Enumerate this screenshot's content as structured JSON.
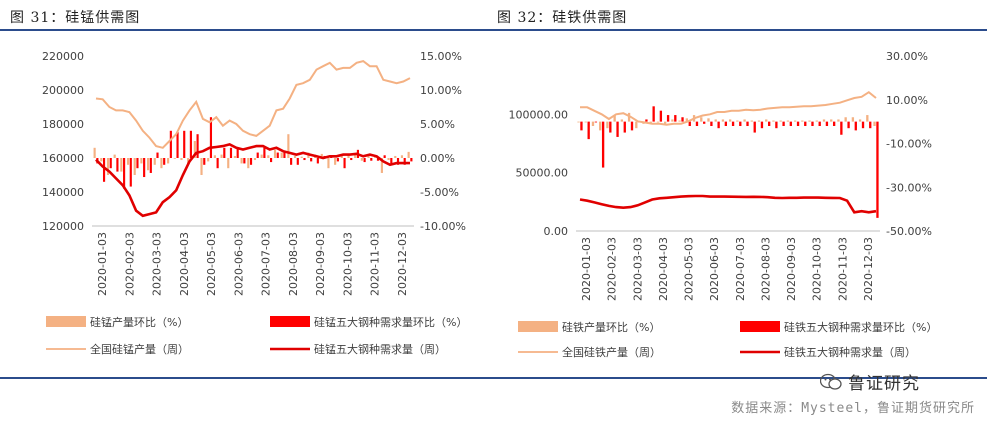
{
  "figures": [
    {
      "title": "图 31：硅锰供需图"
    },
    {
      "title": "图 32：硅铁供需图"
    }
  ],
  "source": "数据来源：Mysteel，鲁证期货研究所",
  "logo_text": "鲁证研究",
  "colors": {
    "rule": "#2b4c8c",
    "bar_prod": "#f4b183",
    "bar_demand": "#ff0000",
    "line_prod": "#f4b183",
    "line_demand": "#e00000"
  },
  "chart_data": [
    {
      "type": "bar+line",
      "x_ticks": [
        "2020-01-03",
        "2020-02-03",
        "2020-03-03",
        "2020-04-03",
        "2020-05-03",
        "2020-06-03",
        "2020-07-03",
        "2020-08-03",
        "2020-09-03",
        "2020-10-03",
        "2020-11-03",
        "2020-12-03"
      ],
      "y_left": {
        "ticks": [
          "120000",
          "140000",
          "160000",
          "180000",
          "200000",
          "220000"
        ],
        "min": 120000,
        "max": 220000
      },
      "y_right": {
        "ticks": [
          "-10.00%",
          "-5.00%",
          "0.00%",
          "5.00%",
          "10.00%",
          "15.00%"
        ],
        "min": -10,
        "max": 15
      },
      "legend": [
        "硅锰产量环比（%）",
        "硅锰五大钢种需求量环比（%）",
        "全国硅锰产量（周）",
        "硅锰五大钢种需求量（周）"
      ],
      "production_week": [
        195000,
        194500,
        190000,
        188000,
        188000,
        187000,
        182000,
        176000,
        172000,
        167000,
        166000,
        170000,
        174000,
        182000,
        188000,
        193000,
        183000,
        181000,
        184000,
        179000,
        182000,
        180000,
        176000,
        174000,
        173000,
        176000,
        179000,
        188000,
        189000,
        195000,
        203000,
        204000,
        206000,
        212000,
        214000,
        216000,
        212000,
        213000,
        213000,
        216000,
        217000,
        214000,
        214000,
        206000,
        205000,
        204000,
        205000,
        207000
      ],
      "demand_week": [
        159000,
        155000,
        152000,
        148000,
        144000,
        138000,
        129000,
        126000,
        127000,
        128000,
        134000,
        137000,
        141000,
        150000,
        158000,
        163000,
        164000,
        166000,
        166500,
        167000,
        168000,
        166000,
        165000,
        166000,
        167000,
        167000,
        165000,
        166000,
        164000,
        163000,
        162000,
        163000,
        162000,
        161000,
        160000,
        161000,
        161000,
        162000,
        162000,
        162500,
        161000,
        162000,
        161000,
        158000,
        156000,
        157000,
        157000,
        157000
      ],
      "production_pct": [
        1.5,
        -0.5,
        -2.5,
        0.5,
        -2.0,
        -1.0,
        -2.5,
        -0.8,
        -1.8,
        -1.0,
        -1.5,
        -0.8,
        0.0,
        -0.3,
        -1.0,
        2.5,
        -2.5,
        -0.5,
        0.4,
        0.5,
        -1.5,
        0.3,
        -0.8,
        -1.5,
        -0.3,
        0.5,
        0.4,
        1.2,
        0.8,
        3.5,
        0.3,
        0.2,
        0.8,
        0.5,
        0.6,
        -1.5,
        -1.0,
        0.5,
        0.6,
        0.5,
        -0.4,
        0.4,
        0.3,
        -2.2,
        -0.3,
        0.3,
        0.4,
        0.9
      ],
      "demand_pct": [
        -0.8,
        -3.5,
        -1.5,
        -2.0,
        -4.5,
        -4.2,
        -1.5,
        -2.8,
        -2.2,
        0.8,
        -1.0,
        4.0,
        3.8,
        4.0,
        4.0,
        3.5,
        -1.0,
        6.0,
        -1.5,
        1.5,
        1.5,
        1.5,
        -0.8,
        -1.0,
        0.8,
        1.5,
        -0.6,
        0.8,
        1.0,
        -1.0,
        -1.0,
        -0.3,
        -0.5,
        -0.8,
        0.3,
        0.3,
        -0.5,
        -1.5,
        -0.3,
        1.2,
        -0.6,
        -0.4,
        -0.4,
        0.4,
        -0.8,
        -1.0,
        -1.0,
        -0.5
      ]
    },
    {
      "type": "bar+line",
      "x_ticks": [
        "2020-01-03",
        "2020-02-03",
        "2020-03-03",
        "2020-04-03",
        "2020-05-03",
        "2020-06-03",
        "2020-07-03",
        "2020-08-03",
        "2020-09-03",
        "2020-10-03",
        "2020-11-03",
        "2020-12-03"
      ],
      "y_left": {
        "ticks": [
          "0.00",
          "50000.00",
          "100000.00"
        ],
        "min": 0,
        "max": 150000
      },
      "y_right": {
        "ticks": [
          "-50.00%",
          "-30.00%",
          "-10.00%",
          "10.00%",
          "30.00%"
        ],
        "min": -50,
        "max": 30
      },
      "legend": [
        "硅铁产量环比（%）",
        "硅铁五大钢种需求量环比（%）",
        "全国硅铁产量（周）",
        "硅铁五大钢种需求量（周）"
      ],
      "production_week": [
        106000,
        106000,
        103000,
        100000,
        96000,
        100000,
        101000,
        98000,
        94000,
        93000,
        92000,
        92000,
        91000,
        92000,
        92000,
        94000,
        97000,
        99000,
        100000,
        102000,
        102000,
        103000,
        103000,
        104000,
        103500,
        104000,
        105000,
        105500,
        106000,
        106000,
        106500,
        107000,
        107000,
        107500,
        108000,
        109000,
        110000,
        112000,
        114000,
        115000,
        119000,
        114000
      ],
      "demand_week": [
        27000,
        26000,
        24500,
        23000,
        21500,
        20500,
        20000,
        20500,
        22000,
        24500,
        27000,
        28000,
        28500,
        29000,
        29500,
        29800,
        30000,
        30000,
        29500,
        29500,
        29500,
        29400,
        29300,
        29200,
        29300,
        29200,
        29000,
        28500,
        28300,
        28500,
        28500,
        28600,
        28600,
        28600,
        28500,
        28400,
        28300,
        26000,
        16000,
        17000,
        16000,
        17000
      ],
      "production_pct": [
        0.0,
        0.0,
        -2.0,
        -4.0,
        -3.0,
        3.0,
        1.0,
        4.0,
        -3.0,
        -1.0,
        -1.0,
        0.0,
        -1.0,
        1.0,
        0.5,
        1.5,
        3.0,
        2.0,
        1.5,
        1.0,
        1.0,
        1.0,
        0.5,
        1.0,
        0.5,
        0.5,
        1.0,
        0.5,
        0.5,
        0.5,
        0.5,
        0.5,
        0.5,
        0.5,
        1.0,
        1.0,
        1.0,
        2.0,
        2.0,
        1.0,
        3.0,
        -2.0
      ],
      "demand_pct": [
        -4,
        -8,
        0,
        -21,
        -5,
        -7,
        -5,
        -4,
        0,
        1,
        7,
        5,
        3,
        3,
        2,
        -2,
        -2,
        -1,
        -2,
        -3,
        -2,
        -2,
        -2,
        -2,
        -5,
        -3,
        -2,
        -3,
        -2,
        -2,
        -2,
        -2,
        -2,
        -2,
        -2,
        -2,
        -6,
        -3,
        -4,
        -3,
        -3,
        -44
      ]
    }
  ]
}
